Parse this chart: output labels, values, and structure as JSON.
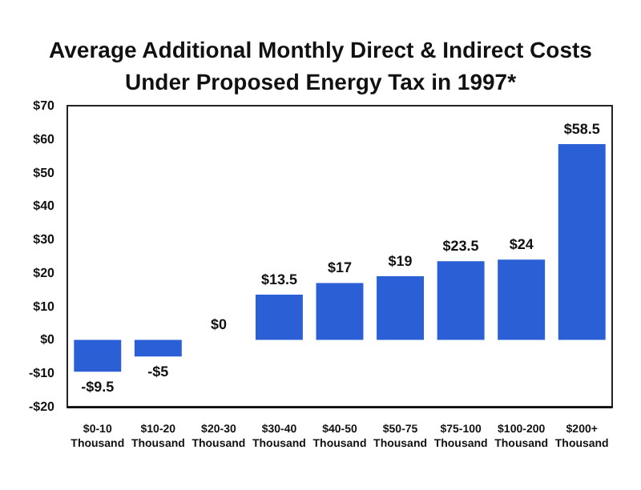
{
  "chart_data": {
    "type": "bar",
    "title": "Average Additional Monthly Direct & Indirect Costs\nUnder Proposed Energy Tax in 1997*",
    "categories": [
      "$0-10\nThousand",
      "$10-20\nThousand",
      "$20-30\nThousand",
      "$30-40\nThousand",
      "$40-50\nThousand",
      "$50-75\nThousand",
      "$75-100\nThousand",
      "$100-200\nThousand",
      "$200+\nThousand"
    ],
    "values": [
      -9.5,
      -5,
      0,
      13.5,
      17,
      19,
      23.5,
      24,
      58.5
    ],
    "value_labels": [
      "-$9.5",
      "-$5",
      "$0",
      "$13.5",
      "$17",
      "$19",
      "$23.5",
      "$24",
      "$58.5"
    ],
    "color": "#2a5fd6",
    "ylim": [
      -20,
      70
    ],
    "yticks": [
      {
        "value": -20,
        "label": "-$20"
      },
      {
        "value": -10,
        "label": "-$10"
      },
      {
        "value": 0,
        "label": "$0"
      },
      {
        "value": 10,
        "label": "$10"
      },
      {
        "value": 20,
        "label": "$20"
      },
      {
        "value": 30,
        "label": "$30"
      },
      {
        "value": 40,
        "label": "$40"
      },
      {
        "value": 50,
        "label": "$50"
      },
      {
        "value": 60,
        "label": "$60"
      },
      {
        "value": 70,
        "label": "$70"
      }
    ],
    "grid": false
  }
}
